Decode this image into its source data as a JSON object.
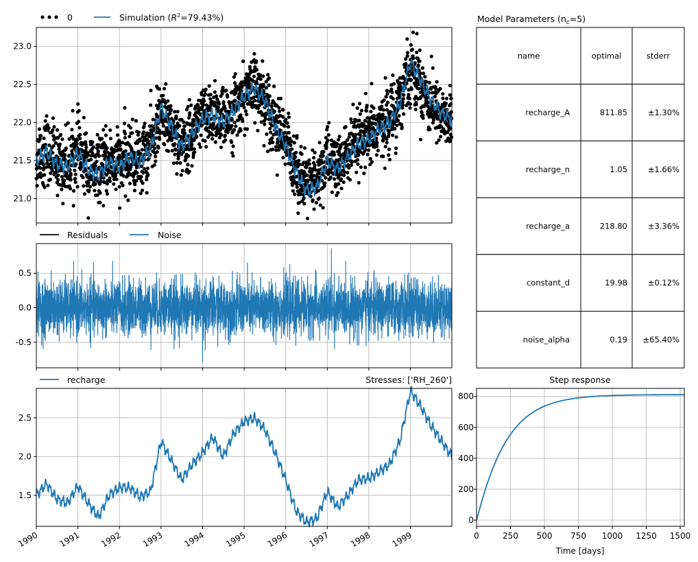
{
  "chart_data": [
    {
      "id": "main",
      "type": "scatter",
      "title": "",
      "xlim": [
        "1990-01-01",
        "1999-12-31"
      ],
      "ylim": [
        20.68,
        23.25
      ],
      "yticks": [
        21.0,
        21.5,
        22.0,
        22.5,
        23.0
      ],
      "grid": true,
      "legend": {
        "placement": "top-left",
        "entries": [
          {
            "name": "0",
            "kind": "dots",
            "color": "#000000"
          },
          {
            "name": "Simulation (R²=79.43%)",
            "kind": "line",
            "color": "#1f77b4"
          }
        ]
      },
      "series": [
        {
          "name": "0",
          "kind": "observations",
          "x": [
            "1990-01-01",
            "1990-04-01",
            "1990-07-01",
            "1990-10-01",
            "1991-01-01",
            "1991-04-01",
            "1991-07-01",
            "1991-10-01",
            "1992-01-01",
            "1992-04-01",
            "1992-07-01",
            "1992-10-01",
            "1993-01-01",
            "1993-04-01",
            "1993-07-01",
            "1993-10-01",
            "1994-01-01",
            "1994-04-01",
            "1994-07-01",
            "1994-10-01",
            "1995-01-01",
            "1995-04-01",
            "1995-07-01",
            "1995-10-01",
            "1996-01-01",
            "1996-04-01",
            "1996-07-01",
            "1996-10-01",
            "1997-01-01",
            "1997-04-01",
            "1997-07-01",
            "1997-10-01",
            "1998-01-01",
            "1998-04-01",
            "1998-07-01",
            "1998-10-01",
            "1999-01-01",
            "1999-04-01",
            "1999-07-01",
            "1999-10-01",
            "1999-12-31"
          ],
          "y": [
            21.55,
            21.65,
            21.5,
            21.45,
            21.65,
            21.4,
            21.35,
            21.5,
            21.45,
            21.55,
            21.5,
            21.7,
            22.1,
            21.95,
            21.7,
            21.85,
            22.05,
            22.1,
            22.0,
            22.15,
            22.35,
            22.45,
            22.3,
            22.0,
            21.75,
            21.4,
            21.15,
            21.2,
            21.55,
            21.4,
            21.6,
            21.75,
            21.8,
            21.95,
            22.05,
            22.3,
            22.75,
            22.5,
            22.25,
            22.1,
            22.0
          ]
        },
        {
          "name": "Simulation (R²=79.43%)",
          "kind": "simulation",
          "x": [
            "1990-01-01",
            "1990-04-01",
            "1990-07-01",
            "1990-10-01",
            "1991-01-01",
            "1991-04-01",
            "1991-07-01",
            "1991-10-01",
            "1992-01-01",
            "1992-04-01",
            "1992-07-01",
            "1992-10-01",
            "1993-01-01",
            "1993-04-01",
            "1993-07-01",
            "1993-10-01",
            "1994-01-01",
            "1994-04-01",
            "1994-07-01",
            "1994-10-01",
            "1995-01-01",
            "1995-04-01",
            "1995-07-01",
            "1995-10-01",
            "1996-01-01",
            "1996-04-01",
            "1996-07-01",
            "1996-10-01",
            "1997-01-01",
            "1997-04-01",
            "1997-07-01",
            "1997-10-01",
            "1998-01-01",
            "1998-04-01",
            "1998-07-01",
            "1998-10-01",
            "1999-01-01",
            "1999-04-01",
            "1999-07-01",
            "1999-10-01",
            "1999-12-31"
          ],
          "y": [
            21.5,
            21.62,
            21.45,
            21.42,
            21.6,
            21.38,
            21.3,
            21.48,
            21.42,
            21.55,
            21.48,
            21.65,
            22.2,
            21.95,
            21.68,
            21.85,
            22.05,
            22.1,
            22.0,
            22.15,
            22.35,
            22.45,
            22.3,
            21.95,
            21.7,
            21.35,
            21.1,
            21.15,
            21.5,
            21.38,
            21.55,
            21.72,
            21.78,
            21.92,
            22.0,
            22.25,
            22.8,
            22.55,
            22.3,
            22.12,
            22.05
          ]
        }
      ]
    },
    {
      "id": "residuals",
      "type": "line",
      "xlim": [
        "1990-01-01",
        "1999-12-31"
      ],
      "ylim": [
        -0.87,
        0.93
      ],
      "yticks": [
        -0.5,
        0.0,
        0.5
      ],
      "grid": true,
      "legend": {
        "placement": "top-left",
        "entries": [
          {
            "name": "Residuals",
            "kind": "line",
            "color": "#000000"
          },
          {
            "name": "Noise",
            "kind": "line",
            "color": "#1f77b4"
          }
        ]
      },
      "series": [
        {
          "name": "Noise",
          "kind": "noise",
          "amplitude": 0.32,
          "min": -0.78,
          "max": 0.86
        }
      ]
    },
    {
      "id": "contribution",
      "type": "line",
      "xlim": [
        "1990-01-01",
        "1999-12-31"
      ],
      "ylim": [
        1.1,
        2.88
      ],
      "yticks": [
        1.5,
        2.0,
        2.5
      ],
      "grid": true,
      "xticks": [
        "1990",
        "1991",
        "1992",
        "1993",
        "1994",
        "1995",
        "1996",
        "1997",
        "1998",
        "1999"
      ],
      "title_right": "Stresses: ['RH_260']",
      "legend": {
        "placement": "top-left",
        "entries": [
          {
            "name": "recharge",
            "kind": "line",
            "color": "#1f77b4"
          }
        ]
      },
      "series": [
        {
          "name": "recharge",
          "x": [
            "1990-01-01",
            "1990-04-01",
            "1990-07-01",
            "1990-10-01",
            "1991-01-01",
            "1991-04-01",
            "1991-07-01",
            "1991-10-01",
            "1992-01-01",
            "1992-04-01",
            "1992-07-01",
            "1992-10-01",
            "1993-01-01",
            "1993-04-01",
            "1993-07-01",
            "1993-10-01",
            "1994-01-01",
            "1994-04-01",
            "1994-07-01",
            "1994-10-01",
            "1995-01-01",
            "1995-04-01",
            "1995-07-01",
            "1995-10-01",
            "1996-01-01",
            "1996-04-01",
            "1996-07-01",
            "1996-10-01",
            "1997-01-01",
            "1997-04-01",
            "1997-07-01",
            "1997-10-01",
            "1998-01-01",
            "1998-04-01",
            "1998-07-01",
            "1998-10-01",
            "1999-01-01",
            "1999-04-01",
            "1999-07-01",
            "1999-10-01",
            "1999-12-31"
          ],
          "y": [
            1.5,
            1.65,
            1.45,
            1.4,
            1.62,
            1.4,
            1.22,
            1.5,
            1.6,
            1.6,
            1.48,
            1.55,
            2.2,
            1.95,
            1.7,
            1.9,
            2.05,
            2.25,
            2.0,
            2.3,
            2.45,
            2.5,
            2.35,
            2.05,
            1.7,
            1.3,
            1.15,
            1.2,
            1.55,
            1.35,
            1.5,
            1.7,
            1.72,
            1.8,
            1.9,
            2.2,
            2.85,
            2.65,
            2.4,
            2.2,
            2.0
          ]
        }
      ]
    },
    {
      "id": "step",
      "type": "line",
      "title": "Step response",
      "xlabel": "Time [days]",
      "xlim": [
        0,
        1530
      ],
      "ylim": [
        -40,
        852
      ],
      "xticks": [
        0,
        250,
        500,
        750,
        1000,
        1250,
        1500
      ],
      "yticks": [
        0,
        200,
        400,
        600,
        800
      ],
      "grid": true,
      "series": [
        {
          "name": "step",
          "A": 811.85,
          "n": 1.05,
          "a": 218.8,
          "color": "#1f77b4"
        }
      ]
    }
  ],
  "parameters_table": {
    "title": "Model Parameters (n",
    "title_sub": "c",
    "title_tail": "=5)",
    "columns": [
      "name",
      "optimal",
      "stderr"
    ],
    "rows": [
      {
        "name": "recharge_A",
        "optimal": "811.85",
        "stderr": "±1.30%"
      },
      {
        "name": "recharge_n",
        "optimal": "1.05",
        "stderr": "±1.66%"
      },
      {
        "name": "recharge_a",
        "optimal": "218.80",
        "stderr": "±3.36%"
      },
      {
        "name": "constant_d",
        "optimal": "19.98",
        "stderr": "±0.12%"
      },
      {
        "name": "noise_alpha",
        "optimal": "0.19",
        "stderr": "±65.40%"
      }
    ]
  },
  "colors": {
    "observation": "#000000",
    "simulation": "#1f77b4"
  }
}
